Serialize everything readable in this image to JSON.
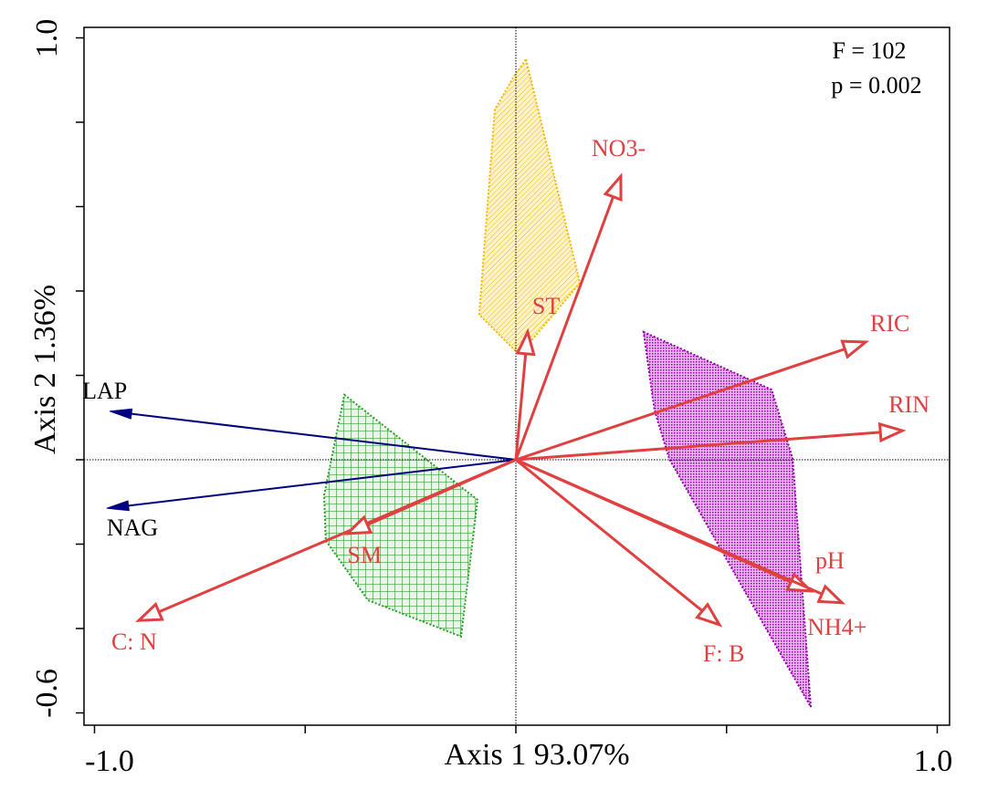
{
  "chart_data": {
    "type": "scatter",
    "subtype": "biplot",
    "xlabel": "Axis 1 93.07%",
    "ylabel": "Axis 2 1.36%",
    "xlim": [
      -1.0,
      1.0
    ],
    "ylim": [
      -0.6,
      1.0
    ],
    "x_tick_labels": [
      "-1.0",
      "1.0"
    ],
    "y_tick_labels": [
      "1.0",
      "-0.6"
    ],
    "x_ticks": [
      -1.0,
      -0.5,
      0,
      0.5,
      1.0
    ],
    "y_ticks": [
      1.0,
      0.8,
      0.6,
      0.4,
      0.2,
      0,
      -0.2,
      -0.4,
      -0.6
    ],
    "grid": false,
    "annotation": [
      "F = 102",
      "p = 0.002"
    ],
    "arrows": [
      {
        "label": "LAP",
        "x": -0.964,
        "y": 0.115,
        "color": "#000080",
        "head": "filled"
      },
      {
        "label": "NAG",
        "x": -0.971,
        "y": -0.115,
        "color": "#000080",
        "head": "filled"
      },
      {
        "label": "C: N",
        "x": -0.895,
        "y": -0.381,
        "color": "#e04040",
        "head": "open"
      },
      {
        "label": "SM",
        "x": -0.4,
        "y": -0.175,
        "color": "#e04040",
        "head": "open"
      },
      {
        "label": "ST",
        "x": 0.028,
        "y": 0.303,
        "color": "#e04040",
        "head": "open"
      },
      {
        "label": "NO3-",
        "x": 0.249,
        "y": 0.672,
        "color": "#e04040",
        "head": "open"
      },
      {
        "label": "RIC",
        "x": 0.83,
        "y": 0.279,
        "color": "#e04040",
        "head": "open"
      },
      {
        "label": "RIN",
        "x": 0.917,
        "y": 0.069,
        "color": "#e04040",
        "head": "open"
      },
      {
        "label": "pH",
        "x": 0.7,
        "y": -0.311,
        "color": "#e04040",
        "head": "open"
      },
      {
        "label": "NH4+",
        "x": 0.774,
        "y": -0.339,
        "color": "#e04040",
        "head": "open"
      },
      {
        "label": "F: B",
        "x": 0.483,
        "y": -0.391,
        "color": "#e04040",
        "head": "open"
      }
    ],
    "groups": [
      {
        "color": "#f5b800",
        "hatch": "diagonal",
        "points": [
          [
            0.024,
            0.949
          ],
          [
            0.152,
            0.419
          ],
          [
            0.039,
            0.285
          ],
          [
            0.0,
            0.257
          ],
          [
            -0.087,
            0.344
          ],
          [
            -0.05,
            0.83
          ],
          [
            -0.004,
            0.91
          ]
        ]
      },
      {
        "color": "#2ca02c",
        "hatch": "grid",
        "points": [
          [
            -0.407,
            0.154
          ],
          [
            -0.249,
            0.03
          ],
          [
            -0.134,
            -0.061
          ],
          [
            -0.091,
            -0.095
          ],
          [
            -0.13,
            -0.419
          ],
          [
            -0.351,
            -0.333
          ],
          [
            -0.451,
            -0.192
          ],
          [
            -0.455,
            -0.084
          ]
        ]
      },
      {
        "color": "#9a00b0",
        "hatch": "crosshatch",
        "points": [
          [
            0.303,
            0.303
          ],
          [
            0.559,
            0.188
          ],
          [
            0.607,
            0.166
          ],
          [
            0.657,
            0.002
          ],
          [
            0.7,
            -0.586
          ],
          [
            0.364,
            0.002
          ],
          [
            0.329,
            0.117
          ]
        ]
      }
    ]
  }
}
